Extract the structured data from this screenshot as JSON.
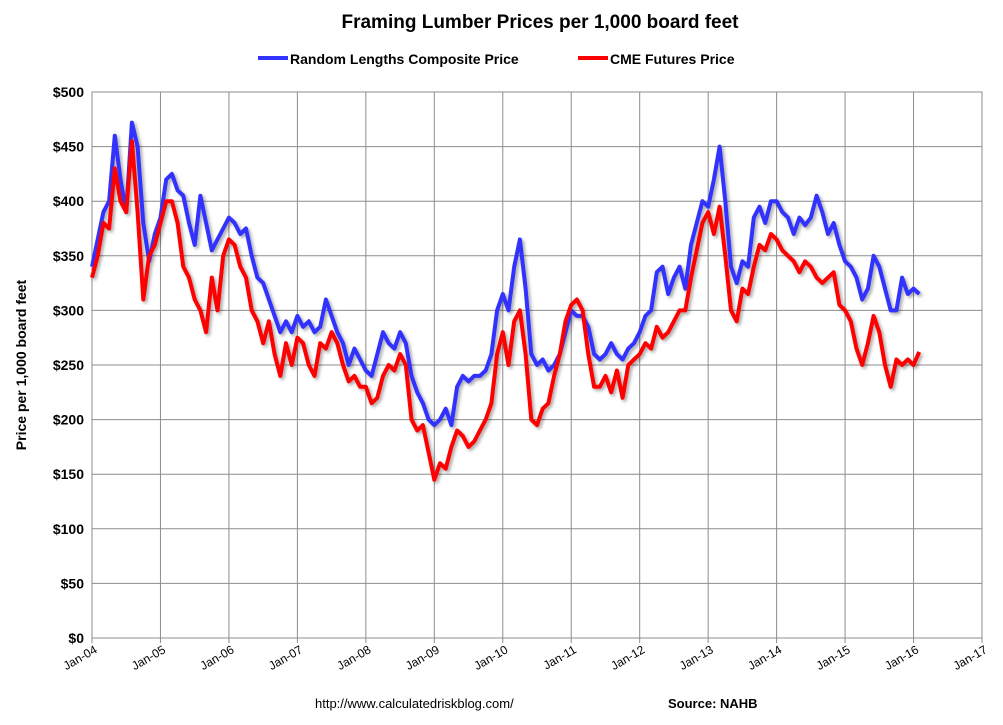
{
  "chart_data": {
    "type": "line",
    "title": "Framing Lumber Prices per 1,000 board feet",
    "xlabel": "",
    "ylabel": "Price per 1,000 board feet",
    "ylim": [
      0,
      500
    ],
    "xlim": [
      "2004-01",
      "2017-01"
    ],
    "grid": true,
    "legend_placement": "top",
    "y_ticks": [
      "$0",
      "$50",
      "$100",
      "$150",
      "$200",
      "$250",
      "$300",
      "$350",
      "$400",
      "$450",
      "$500"
    ],
    "x_ticks": [
      "Jan-04",
      "Jan-05",
      "Jan-06",
      "Jan-07",
      "Jan-08",
      "Jan-09",
      "Jan-10",
      "Jan-11",
      "Jan-12",
      "Jan-13",
      "Jan-14",
      "Jan-15",
      "Jan-16",
      "Jan-17"
    ],
    "start_month": "2004-01",
    "series": [
      {
        "name": "Random Lengths Composite Price",
        "color": "#3333ff",
        "frequency": "monthly",
        "values": [
          340,
          365,
          390,
          400,
          460,
          420,
          390,
          472,
          450,
          380,
          345,
          370,
          385,
          420,
          425,
          410,
          405,
          380,
          360,
          405,
          380,
          355,
          365,
          375,
          385,
          380,
          370,
          375,
          350,
          330,
          325,
          310,
          295,
          280,
          290,
          280,
          295,
          285,
          290,
          280,
          285,
          310,
          295,
          280,
          270,
          250,
          265,
          255,
          245,
          240,
          260,
          280,
          270,
          265,
          280,
          270,
          240,
          225,
          215,
          200,
          195,
          200,
          210,
          195,
          230,
          240,
          235,
          240,
          240,
          245,
          260,
          300,
          315,
          300,
          340,
          365,
          320,
          260,
          250,
          255,
          245,
          250,
          260,
          280,
          300,
          295,
          295,
          285,
          260,
          255,
          260,
          270,
          260,
          255,
          265,
          270,
          280,
          295,
          300,
          335,
          340,
          315,
          330,
          340,
          320,
          360,
          380,
          400,
          395,
          420,
          450,
          400,
          340,
          325,
          345,
          340,
          385,
          395,
          380,
          400,
          400,
          390,
          385,
          370,
          385,
          378,
          385,
          405,
          390,
          370,
          380,
          360,
          345,
          340,
          330,
          310,
          320,
          350,
          340,
          320,
          300,
          300,
          330,
          315,
          320,
          315
        ]
      },
      {
        "name": "CME Futures Price",
        "color": "#ff0000",
        "frequency": "monthly",
        "values": [
          330,
          350,
          380,
          375,
          430,
          400,
          390,
          455,
          390,
          310,
          350,
          360,
          380,
          400,
          400,
          380,
          340,
          330,
          310,
          300,
          280,
          330,
          300,
          350,
          365,
          360,
          340,
          330,
          300,
          290,
          270,
          290,
          260,
          240,
          270,
          250,
          275,
          270,
          250,
          240,
          270,
          265,
          280,
          270,
          250,
          235,
          240,
          230,
          230,
          215,
          220,
          240,
          250,
          245,
          260,
          250,
          200,
          190,
          195,
          170,
          145,
          160,
          155,
          175,
          190,
          185,
          175,
          180,
          190,
          200,
          215,
          260,
          280,
          250,
          290,
          300,
          260,
          200,
          195,
          210,
          215,
          240,
          260,
          290,
          305,
          310,
          300,
          260,
          230,
          230,
          240,
          225,
          245,
          220,
          250,
          255,
          260,
          270,
          265,
          285,
          275,
          280,
          290,
          300,
          300,
          330,
          355,
          380,
          390,
          370,
          395,
          350,
          300,
          290,
          320,
          315,
          340,
          360,
          355,
          370,
          365,
          355,
          350,
          345,
          335,
          345,
          340,
          330,
          325,
          330,
          335,
          305,
          300,
          290,
          265,
          250,
          270,
          295,
          280,
          250,
          230,
          255,
          250,
          255,
          250,
          262
        ]
      }
    ]
  },
  "footer": {
    "url": "http://www.calculatedriskblog.com/",
    "source": "Source: NAHB"
  }
}
